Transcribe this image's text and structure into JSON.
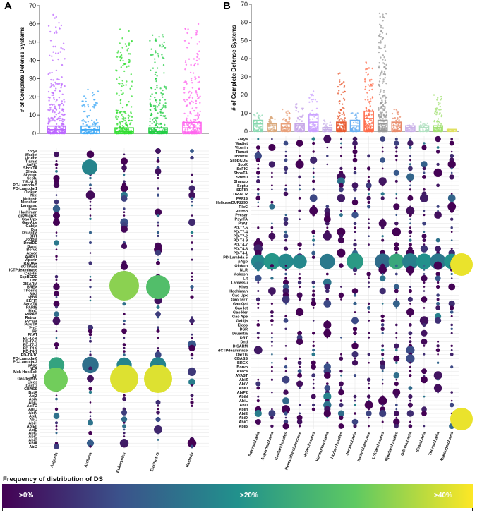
{
  "panels": {
    "a": "A",
    "b": "B"
  },
  "legend": {
    "title": "Frequency of distribution of DS",
    "low": ">0%",
    "mid": ">20%",
    "high": ">40%"
  },
  "colors": {
    "asgards": "#bb66ff",
    "archaea": "#3ea8f5",
    "eukaryotes": "#33dd33",
    "eukprot": "#22cc44",
    "bacteria": "#ff66ee"
  },
  "chart_data": [
    {
      "type": "box-strip",
      "panel": "A",
      "ylabel": "# of Complete Defense Systems",
      "ylim": [
        0,
        70
      ],
      "yticks": [
        0,
        10,
        20,
        30,
        40,
        50,
        60,
        70
      ],
      "categories": [
        "Asgards",
        "Archaea",
        "Eukaryotes",
        "EukProtV3",
        "Bacteria"
      ],
      "box": {
        "median": [
          2,
          2,
          1,
          1,
          3
        ],
        "q3": [
          4,
          4,
          3,
          3,
          6
        ],
        "max_outlier": [
          65,
          24,
          57,
          54,
          60
        ]
      }
    },
    {
      "type": "bubble-matrix",
      "panel": "A",
      "columns": [
        "Asgards",
        "Archaea",
        "Eukaryotes",
        "EukProtV3",
        "Bacteria"
      ],
      "rows": [
        "Zorya",
        "Wadjet",
        "Uzume",
        "Tiamat",
        "SoFIC",
        "ShosTA",
        "Shedu",
        "Shango",
        "Septu",
        "TIR-NLR",
        "PD-Lambda-5",
        "PD-Lambda-1",
        "Olokun",
        "Nixi",
        "Mokosh",
        "Menshen",
        "Lamassu",
        "Kiwa",
        "Hachiman",
        "gp29-gp30",
        "Gao Upx",
        "Gao Ape",
        "Gabija",
        "Dsr",
        "Druantia",
        "DRT",
        "Dodola",
        "DmdDE",
        "Bunzi",
        "Borvo",
        "Azaca",
        "AVAST",
        "Viperin",
        "RADAR",
        "dGTPase",
        "ICTPdeaminase",
        "CapRel",
        "SspBCDE",
        "Dnd",
        "DISARM",
        "BREX",
        "Thoeris",
        "Stk2",
        "SpbK",
        "SEFIR",
        "SanaTA",
        "PARIS",
        "RloC",
        "RexAB",
        "Retron",
        "Pycsar",
        "PsyrTA",
        "PrrC",
        "Pif",
        "PfiAT",
        "PD-T7-4",
        "PD-T7-3",
        "PD-T7-2",
        "PD-T4-9",
        "PD-T4-7",
        "PD-T4-10",
        "PD-Lambda-6",
        "PD-Lambda-2",
        "pAgo",
        "NLR",
        "Mok Hok Sok",
        "Lit",
        "GasderMIN",
        "Eleos",
        "DarTG",
        "CBASS",
        "BstA",
        "AbiZ",
        "AbiV",
        "AbiU",
        "AbiP2",
        "AbiO",
        "AbiN",
        "AbiL",
        "AbiJ",
        "AbiH",
        "AbiEii",
        "AbiE",
        "AbiD",
        "AbiC",
        "AbiB",
        "AbiA",
        "Abi2"
      ]
    },
    {
      "type": "box-strip",
      "panel": "B",
      "ylabel": "# of Complete Defense Systems",
      "ylim": [
        0,
        70
      ],
      "yticks": [
        0,
        10,
        20,
        30,
        40,
        50,
        60,
        70
      ],
      "categories": [
        "Baldrarchaeia",
        "Asgardarchaeia",
        "Gerdarchaeales",
        "Heimdallarchaeaceae",
        "Helarchaeales",
        "Hermodarchaeia",
        "Hodarchaeales",
        "Jordarchaeia",
        "Kariarchaeaceae",
        "Lokiarchaeales",
        "Njordarchaeales",
        "Odinarchaeia",
        "Sifarchaeia",
        "Thorarchaeia",
        "Wukongarchaeia"
      ],
      "box": {
        "median": [
          4,
          3,
          2,
          3,
          5,
          1,
          3,
          3,
          7,
          4,
          3,
          2,
          2,
          2,
          1
        ],
        "q3": [
          6,
          4,
          4,
          4,
          9,
          2,
          5,
          6,
          11,
          6,
          5,
          3,
          3,
          3,
          1
        ],
        "max_outlier": [
          10,
          8,
          12,
          15,
          22,
          6,
          32,
          10,
          38,
          65,
          12,
          4,
          5,
          20,
          1
        ]
      }
    },
    {
      "type": "bubble-matrix",
      "panel": "B",
      "columns": [
        "Baldrarchaeia",
        "Asgardarchaeia",
        "Gerdarchaeales",
        "Heimdallarchaeaceae",
        "Helarchaeales",
        "Hermodarchaeia",
        "Hodarchaeales",
        "Jordarchaeia",
        "Kariarchaeaceae",
        "Lokiarchaeales",
        "Njordarchaeales",
        "Odinarchaeia",
        "Sifarchaeia",
        "Thorarchaeia",
        "Wukongarchaeia"
      ],
      "rows": [
        "Zorya",
        "Wadjet",
        "Viperin",
        "Tiamat",
        "Thoeris",
        "SspBCDE",
        "SpbK",
        "SoFIC",
        "ShosTA",
        "Shedu",
        "Shango",
        "Septu",
        "SEFIR",
        "TIR-NLR",
        "PARIS",
        "HelicaseDUF2290",
        "RloC",
        "Retron",
        "Pycsar",
        "PsyrTA",
        "PfiAT",
        "PD-T7-5",
        "PD-T7-4",
        "PD-T7-2",
        "PD-T4-9",
        "PD-T4-7",
        "PD-T4-3",
        "PD-T4-1",
        "PD-Lambda-5",
        "pAgo",
        "Olokun",
        "NLR",
        "Mokosh",
        "Lit",
        "Lamassu",
        "Kiwa",
        "Hachiman",
        "Gao Upx",
        "Gao TerY",
        "Gao Qat",
        "Gao Iet",
        "Gao Her",
        "Gao Ape",
        "Gabija",
        "Eleos",
        "DSR",
        "Druantia",
        "DRT",
        "Dnd",
        "DISARM",
        "dCTPdeaminase",
        "DarTG",
        "CBASS",
        "BREX",
        "Borvo",
        "Azaca",
        "AVAST",
        "AbiZ",
        "AbiV",
        "AbiU",
        "AbiP2",
        "AbiN",
        "AbiL",
        "AbiJ",
        "AbiH",
        "AbiE",
        "AbiD",
        "AbiC",
        "AbiB"
      ]
    }
  ]
}
